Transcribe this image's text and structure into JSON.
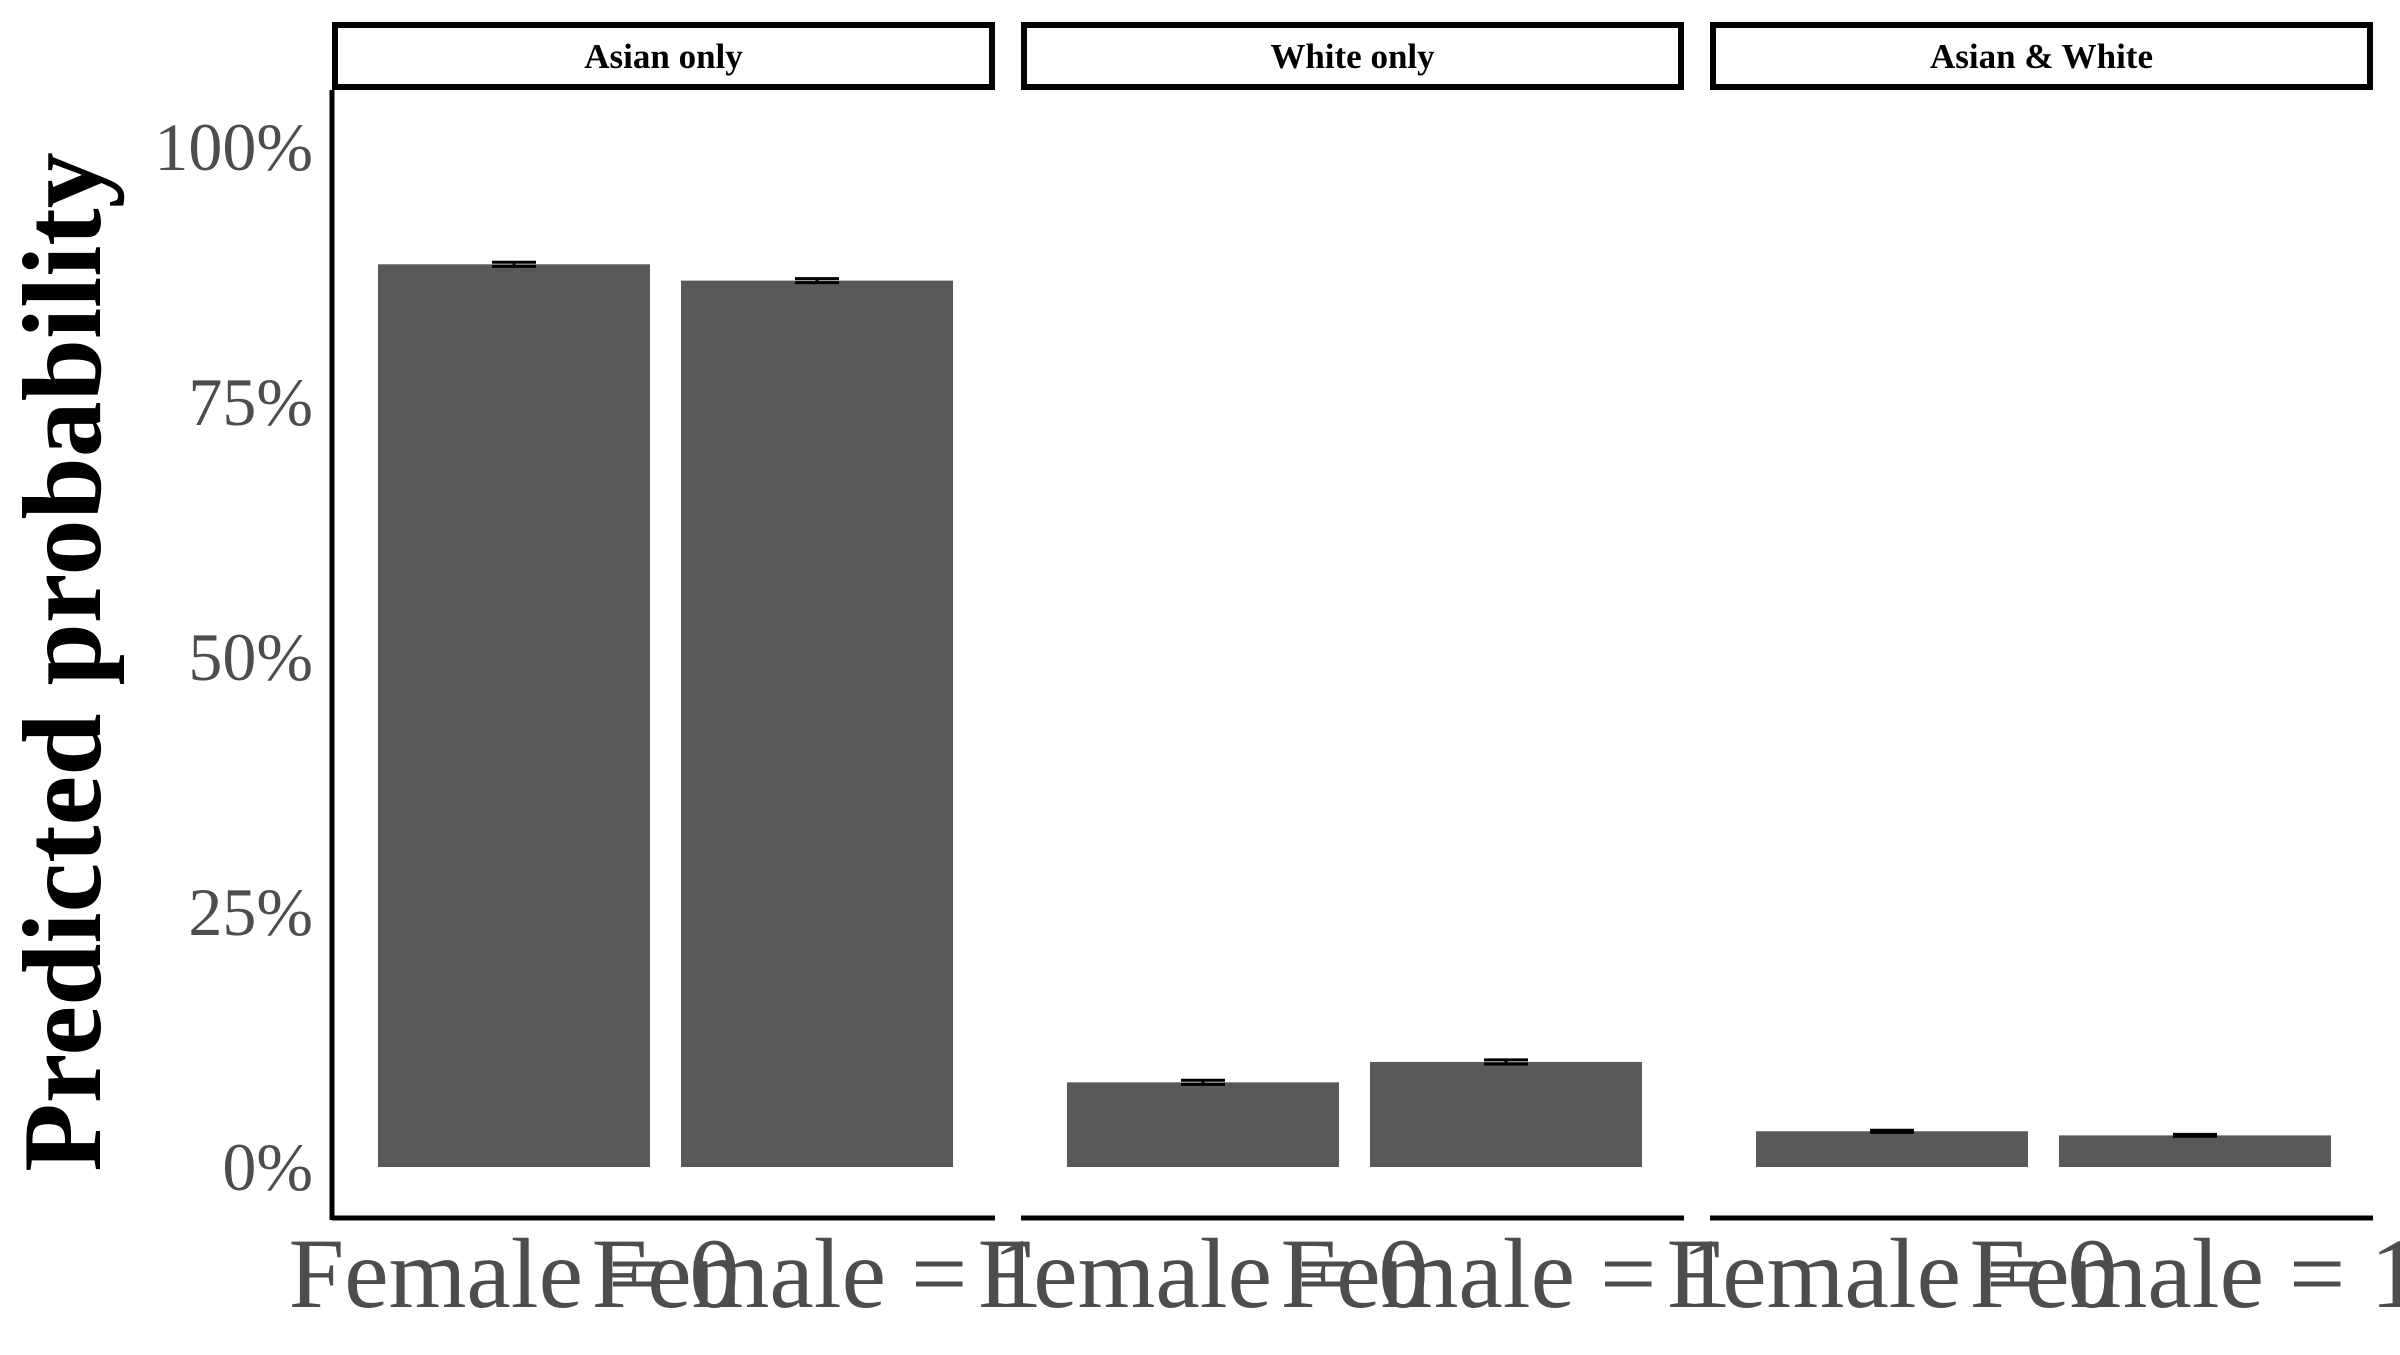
{
  "chart_data": {
    "type": "bar",
    "ylabel": "Predicted probability",
    "xlabel": "",
    "ylim": [
      0,
      1
    ],
    "yticks": [
      {
        "value": 0,
        "label": "0%"
      },
      {
        "value": 0.25,
        "label": "25%"
      },
      {
        "value": 0.5,
        "label": "50%"
      },
      {
        "value": 0.75,
        "label": "75%"
      },
      {
        "value": 1,
        "label": "100%"
      }
    ],
    "categories": [
      "Female = 0",
      "Female = 1"
    ],
    "panels": [
      {
        "title": "Asian only",
        "values": [
          0.885,
          0.869
        ],
        "errors": [
          0.002,
          0.002
        ]
      },
      {
        "title": "White only",
        "values": [
          0.083,
          0.103
        ],
        "errors": [
          0.002,
          0.002
        ]
      },
      {
        "title": "Asian & White",
        "values": [
          0.035,
          0.031
        ],
        "errors": [
          0.001,
          0.001
        ]
      }
    ],
    "bar_color": "#595959",
    "grid": false
  }
}
